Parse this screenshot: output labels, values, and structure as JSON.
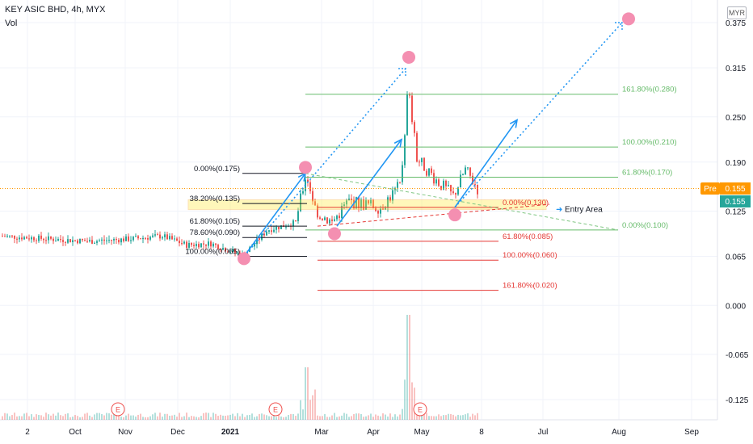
{
  "header": {
    "symbol_line": "KEY ASIC BHD, 4h, MYX",
    "vol_label": "Vol",
    "currency": "MYR"
  },
  "colors": {
    "up": "#26a69a",
    "down": "#ef5350",
    "fib_green": "#66bb6a",
    "fib_black": "#131722",
    "fib_red": "#e53935",
    "arrow": "#2196f3",
    "marker": "#f48fb1",
    "entry": "#ffeb3b",
    "pre": "#ff9800",
    "price": "#26a69a"
  },
  "chart_data": {
    "type": "candlestick",
    "ylim": [
      -0.145,
      0.385
    ],
    "y_ticks": [
      "0.375",
      "0.315",
      "0.250",
      "0.190",
      "0.125",
      "0.065",
      "0.000",
      "-0.065",
      "-0.125"
    ],
    "y_tick_values": [
      0.375,
      0.315,
      0.25,
      0.19,
      0.125,
      0.065,
      0.0,
      -0.065,
      -0.125
    ],
    "x_ticks": [
      "2",
      "Oct",
      "Nov",
      "Dec",
      "2021",
      "Mar",
      "Apr",
      "May",
      "8",
      "Jul",
      "Aug",
      "Sep"
    ],
    "price_labels": {
      "pre_tag": "Pre",
      "pre_value": "0.155",
      "last_value": "0.155",
      "value": 0.155
    },
    "fib_sets": [
      {
        "color": "black",
        "levels": [
          {
            "label": "0.00%(0.175)",
            "value": 0.175
          },
          {
            "label": "38.20%(0.135)",
            "value": 0.135
          },
          {
            "label": "61.80%(0.105)",
            "value": 0.105
          },
          {
            "label": "78.60%(0.090)",
            "value": 0.09
          },
          {
            "label": "100.00%(0.065)",
            "value": 0.065
          }
        ]
      },
      {
        "color": "green",
        "levels": [
          {
            "label": "161.80%(0.280)",
            "value": 0.28
          },
          {
            "label": "100.00%(0.210)",
            "value": 0.21
          },
          {
            "label": "61.80%(0.170)",
            "value": 0.17
          },
          {
            "label": "0.00%(0.100)",
            "value": 0.1
          }
        ]
      },
      {
        "color": "red",
        "levels": [
          {
            "label": "0.00%(0.130)",
            "value": 0.13
          },
          {
            "label": "61.80%(0.085)",
            "value": 0.085
          },
          {
            "label": "100.00%(0.060)",
            "value": 0.06
          },
          {
            "label": "161.80%(0.020)",
            "value": 0.02
          }
        ]
      }
    ],
    "entry_area": {
      "label": "Entry Area",
      "low": 0.127,
      "high": 0.14
    },
    "events": [
      "E",
      "E",
      "E"
    ]
  }
}
